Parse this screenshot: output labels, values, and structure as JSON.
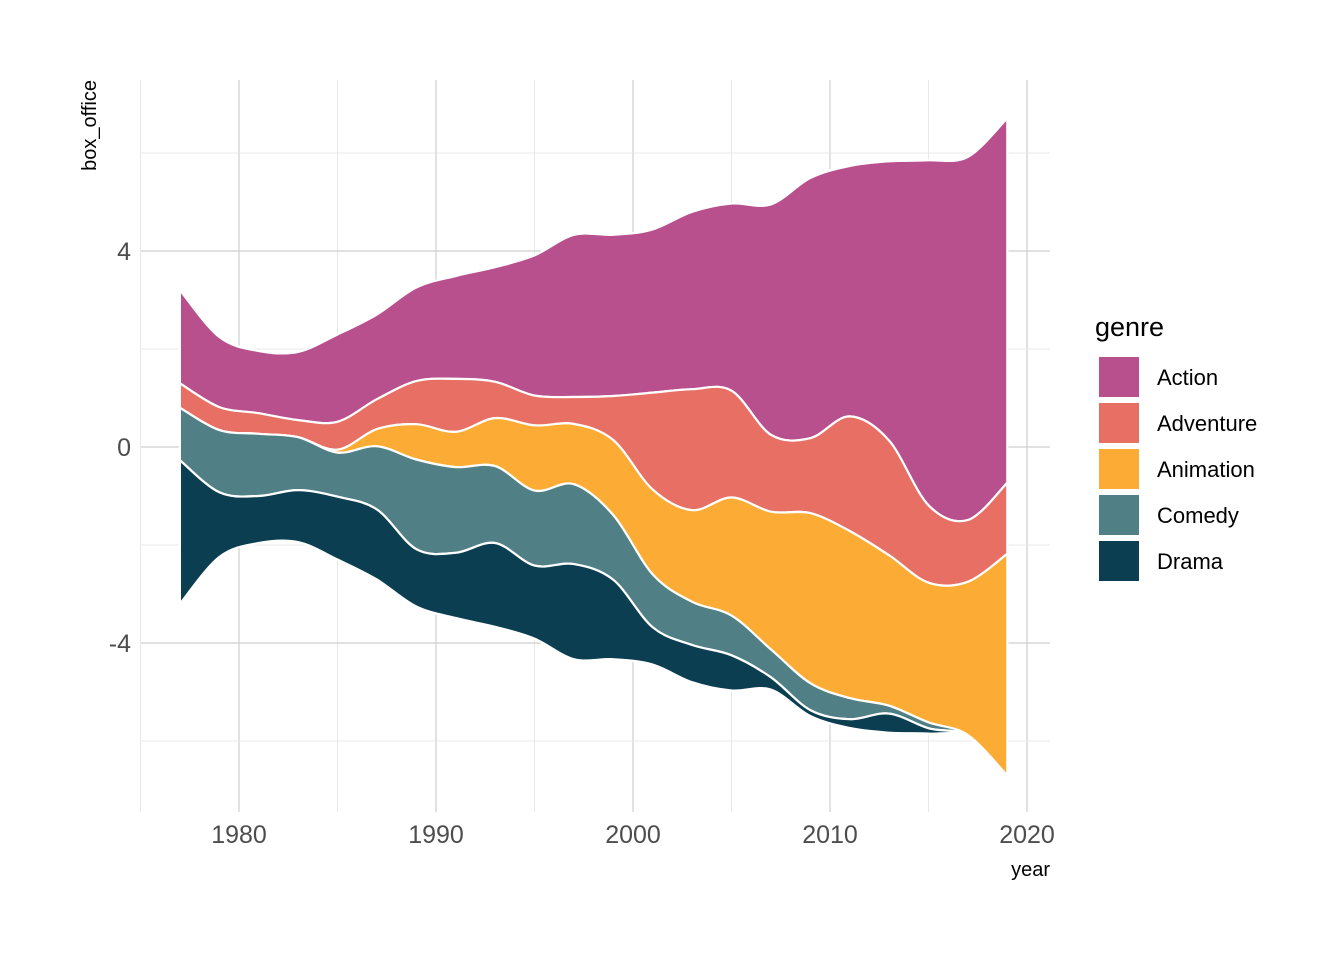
{
  "chart_data": {
    "type": "area",
    "subtype": "streamgraph",
    "title": "",
    "xlabel": "year",
    "ylabel": "box_office",
    "xlim": [
      1975,
      2021.2
    ],
    "ylim": [
      -7.5,
      7.5
    ],
    "x_ticks": [
      1980,
      1990,
      2000,
      2010,
      2020
    ],
    "x_tick_labels": [
      "1980",
      "1990",
      "2000",
      "2010",
      "2020"
    ],
    "y_ticks": [
      -4,
      0,
      4
    ],
    "y_tick_labels": [
      "-4",
      "0",
      "4"
    ],
    "grid": true,
    "legend": {
      "title": "genre",
      "placement": "right"
    },
    "x": [
      1977,
      1979,
      1981,
      1983,
      1985,
      1987,
      1989,
      1991,
      1993,
      1995,
      1997,
      1999,
      2001,
      2003,
      2005,
      2007,
      2009,
      2011,
      2013,
      2015,
      2017,
      2019
    ],
    "series": [
      {
        "name": "Action",
        "color": "#B8508E",
        "values": [
          1.9,
          1.43,
          1.27,
          1.39,
          1.78,
          1.73,
          1.91,
          2.1,
          2.34,
          2.86,
          3.31,
          3.29,
          3.33,
          3.62,
          3.82,
          4.7,
          5.31,
          5.11,
          5.7,
          7.04,
          7.41,
          7.44
        ]
      },
      {
        "name": "Adventure",
        "color": "#E76F64",
        "values": [
          0.5,
          0.47,
          0.42,
          0.35,
          0.57,
          0.61,
          0.88,
          1.08,
          0.74,
          0.61,
          0.55,
          0.9,
          1.98,
          2.47,
          2.18,
          1.57,
          1.53,
          2.34,
          2.34,
          1.58,
          1.26,
          1.45
        ]
      },
      {
        "name": "Animation",
        "color": "#FCAC34",
        "values": [
          0,
          0,
          0,
          0,
          0.06,
          0.35,
          0.72,
          0.72,
          0.98,
          1.33,
          1.23,
          1.53,
          1.73,
          1.87,
          2.41,
          2.81,
          3.47,
          3.41,
          3.07,
          2.85,
          3.13,
          4.53
        ]
      },
      {
        "name": "Comedy",
        "color": "#517F86",
        "values": [
          1.07,
          1.27,
          1.27,
          1.08,
          0.9,
          1.29,
          1.83,
          1.75,
          1.57,
          1.53,
          1.63,
          1.32,
          1.08,
          0.88,
          0.81,
          0.57,
          0.55,
          0.43,
          0.16,
          0.12,
          0.02,
          0
        ]
      },
      {
        "name": "Drama",
        "color": "#0A3E50",
        "values": [
          2.93,
          1.32,
          0.96,
          1.06,
          1.28,
          1.43,
          1.17,
          1.33,
          1.71,
          1.49,
          1.94,
          1.62,
          0.76,
          0.76,
          0.72,
          0.25,
          0.12,
          0.18,
          0.39,
          0.11,
          0.02,
          0
        ]
      }
    ]
  }
}
